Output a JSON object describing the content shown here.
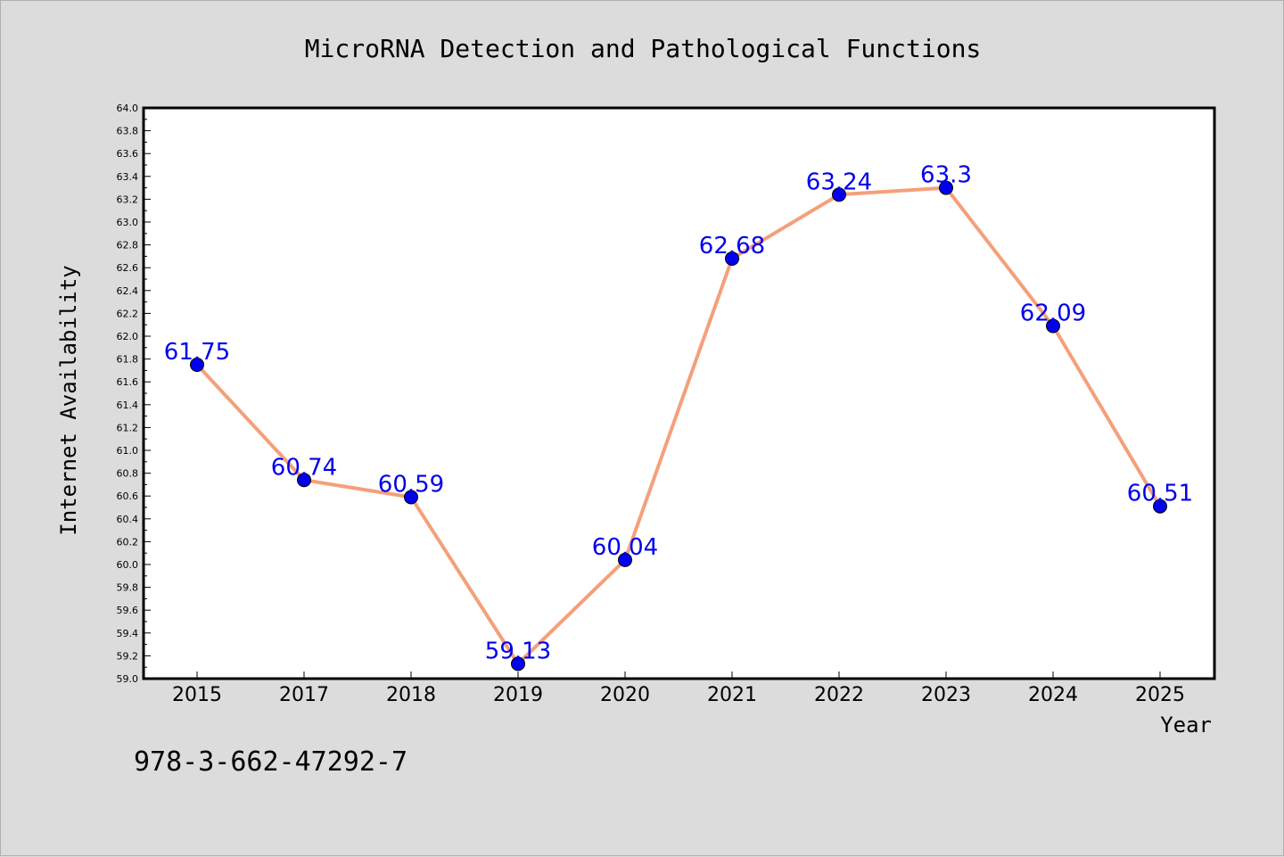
{
  "chart_data": {
    "type": "line",
    "title": "MicroRNA Detection and Pathological Functions",
    "xlabel": "Year",
    "ylabel": "Internet Availability",
    "categories": [
      "2015",
      "2017",
      "2018",
      "2019",
      "2020",
      "2021",
      "2022",
      "2023",
      "2024",
      "2025"
    ],
    "series": [
      {
        "values": [
          61.75,
          60.74,
          60.59,
          59.13,
          60.04,
          62.68,
          63.24,
          63.3,
          62.09,
          60.51
        ],
        "data_labels": [
          "61.75",
          "60.74",
          "60.59",
          "59.13",
          "60.04",
          "62.68",
          "63.24",
          "63.3",
          "62.09",
          "60.51"
        ],
        "line_color": "#f4a07a",
        "marker_color": "#0000ee",
        "label_color": "#0000ee"
      }
    ],
    "ylim": [
      59.0,
      64.0
    ],
    "yticks": [
      "59.0",
      "59.2",
      "59.4",
      "59.6",
      "59.8",
      "60.0",
      "60.2",
      "60.4",
      "60.6",
      "60.8",
      "61.0",
      "61.2",
      "61.4",
      "61.6",
      "61.8",
      "62.0",
      "62.2",
      "62.4",
      "62.6",
      "62.8",
      "63.0",
      "63.2",
      "63.4",
      "63.6",
      "63.8",
      "64.0"
    ],
    "grid": false,
    "legend": "none"
  },
  "footer": {
    "isbn": "978-3-662-47292-7"
  },
  "colors": {
    "background": "#dcdcdc",
    "plot_background": "#ffffff",
    "axis": "#000000"
  }
}
